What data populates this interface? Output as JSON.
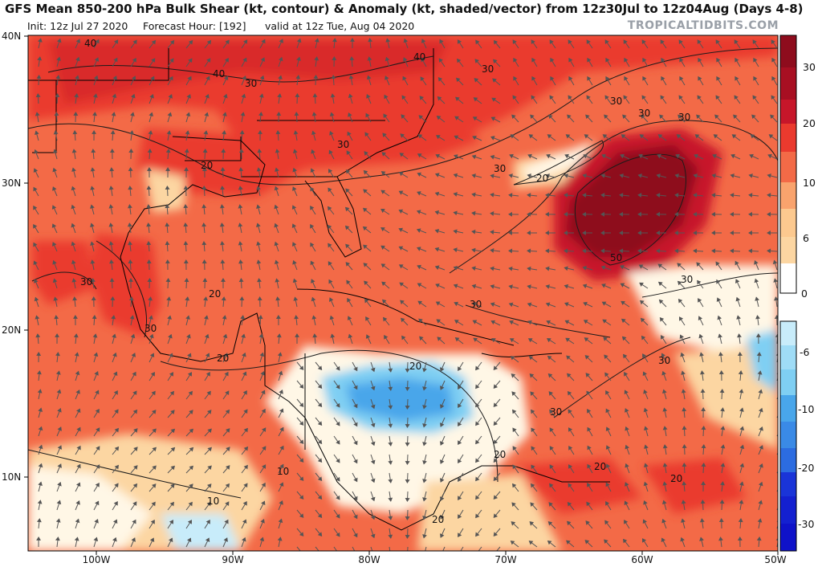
{
  "header": {
    "title": "GFS Mean 850-200 hPa Bulk Shear (kt, contour) & Anomaly (kt, shaded/vector) from 12z30Jul to 12z04Aug (Days 4-8)",
    "init": "Init: 12z Jul 27 2020",
    "forecast_hour": "Forecast Hour: [192]",
    "valid": "valid at 12z Tue, Aug 04 2020",
    "brand": "TROPICALTIDBITS.COM"
  },
  "axes": {
    "lat_labels": [
      "40N",
      "30N",
      "20N",
      "10N"
    ],
    "lon_labels": [
      "100W",
      "90W",
      "80W",
      "70W",
      "60W",
      "50W"
    ]
  },
  "colorbar": {
    "labels": [
      "30",
      "20",
      "10",
      "6",
      "0",
      "-6",
      "-10",
      "-20",
      "-30"
    ],
    "positive_colors": [
      "#8e0c1d",
      "#c7162a",
      "#ea3a2e",
      "#f36a47",
      "#f9a36d",
      "#fcd6a2",
      "#fff7e6"
    ],
    "negative_colors": [
      "#c8ecfa",
      "#7fcff3",
      "#49a6ea",
      "#2c6ce0",
      "#1a34d8",
      "#0f12c9"
    ]
  },
  "contour_labels": [
    "40",
    "40",
    "40",
    "30",
    "30",
    "30",
    "30",
    "30",
    "30",
    "30",
    "30",
    "30",
    "30",
    "30",
    "30",
    "30",
    "30",
    "20",
    "20",
    "20",
    "20",
    "20",
    "20",
    "20",
    "20",
    "20",
    "50",
    "10",
    "10"
  ]
}
